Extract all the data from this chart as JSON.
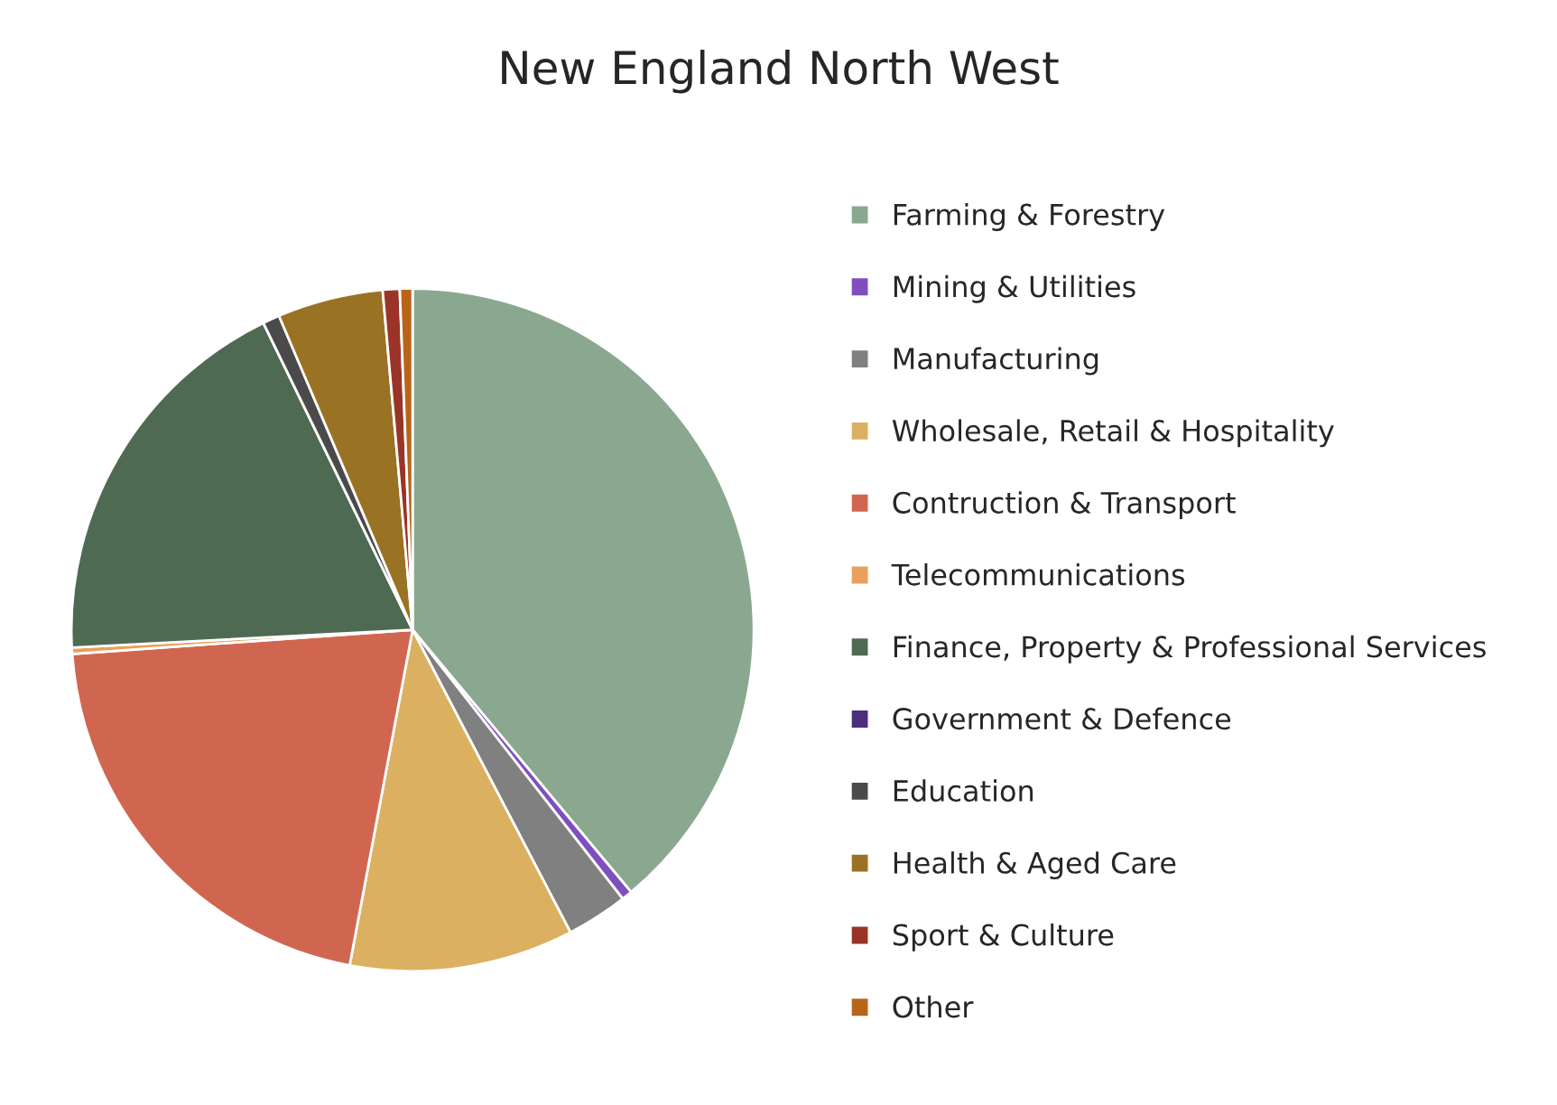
{
  "chart_data": {
    "type": "pie",
    "title": "New England North West",
    "categories": [
      "Farming & Forestry",
      "Mining & Utilities",
      "Manufacturing",
      "Wholesale, Retail & Hospitality",
      "Contruction & Transport",
      "Telecommunications",
      "Finance, Property & Professional Services",
      "Government & Defence",
      "Education",
      "Health & Aged Care",
      "Sport & Culture",
      "Other"
    ],
    "values": [
      38.9,
      0.5,
      2.9,
      10.6,
      20.9,
      0.3,
      18.6,
      null,
      0.8,
      5.0,
      0.8,
      0.6
    ],
    "colors": [
      "#8aa88f",
      "#7f4fbf",
      "#808080",
      "#dbb060",
      "#d16650",
      "#e8a05a",
      "#4e6a53",
      "#4b2e7e",
      "#4a4a4a",
      "#9a7224",
      "#9a3428",
      "#b8651a"
    ],
    "legend": "right"
  }
}
